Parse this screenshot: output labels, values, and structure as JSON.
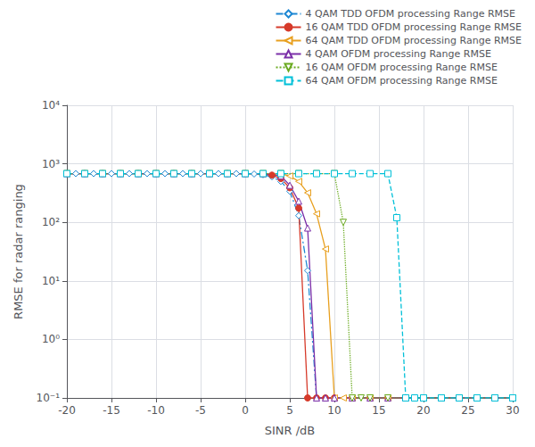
{
  "chart_data": {
    "type": "line",
    "xlabel": "SINR /dB",
    "ylabel": "RMSE for radar ranging",
    "xlim": [
      -20,
      30
    ],
    "ylim": [
      0.1,
      10000
    ],
    "xticks": [
      -20,
      -15,
      -10,
      -5,
      0,
      5,
      10,
      15,
      20,
      25,
      30
    ],
    "yticks": [
      {
        "value": 0.1,
        "label": "10⁻¹"
      },
      {
        "value": 1,
        "label": "10⁰"
      },
      {
        "value": 10,
        "label": "10¹"
      },
      {
        "value": 100,
        "label": "10²"
      },
      {
        "value": 1000,
        "label": "10³"
      },
      {
        "value": 10000,
        "label": "10⁴"
      }
    ],
    "log": "y",
    "grid": true,
    "legend": "upper right",
    "series": [
      {
        "name": "4 QAM TDD OFDM processing Range RMSE",
        "color": "#1e88d4",
        "line_style": "dashdot",
        "marker": "open-diamond",
        "x": [
          -20,
          -19,
          -18,
          -17,
          -16,
          -15,
          -14,
          -13,
          -12,
          -11,
          -10,
          -9,
          -8,
          -7,
          -6,
          -5,
          -4,
          -3,
          -2,
          -1,
          0,
          1,
          2,
          3,
          4,
          5,
          6,
          7,
          8,
          9,
          10,
          12,
          14,
          16,
          18,
          20,
          22,
          24,
          26,
          28,
          30
        ],
        "values": [
          680,
          680,
          680,
          680,
          680,
          680,
          680,
          680,
          680,
          680,
          680,
          680,
          680,
          680,
          680,
          680,
          680,
          680,
          680,
          680,
          680,
          670,
          650,
          600,
          500,
          340,
          130,
          15,
          0.1,
          0.1,
          0.1,
          0.1,
          0.1,
          0.1,
          0.1,
          0.1,
          0.1,
          0.1,
          0.1,
          0.1,
          0.1
        ]
      },
      {
        "name": "16 QAM TDD OFDM processing Range RMSE",
        "color": "#d63a2a",
        "line_style": "solid",
        "marker": "filled-circle",
        "x": [
          -20,
          -18,
          -16,
          -14,
          -12,
          -10,
          -8,
          -6,
          -4,
          -2,
          0,
          2,
          3,
          4,
          5,
          6,
          7,
          8,
          9,
          10,
          12,
          14,
          16,
          18,
          20,
          22,
          24,
          26,
          28,
          30
        ],
        "values": [
          680,
          680,
          680,
          680,
          680,
          680,
          680,
          680,
          680,
          680,
          680,
          670,
          640,
          560,
          390,
          175,
          0.1,
          0.1,
          0.1,
          0.1,
          0.1,
          0.1,
          0.1,
          0.1,
          0.1,
          0.1,
          0.1,
          0.1,
          0.1,
          0.1
        ]
      },
      {
        "name": "64 QAM TDD OFDM processing Range RMSE",
        "color": "#e8a020",
        "line_style": "solid",
        "marker": "open-triangle-left",
        "x": [
          -20,
          -18,
          -16,
          -14,
          -12,
          -10,
          -8,
          -6,
          -4,
          -2,
          0,
          2,
          4,
          5,
          6,
          7,
          8,
          9,
          10,
          11,
          12,
          14,
          16,
          18,
          20,
          22,
          24,
          26,
          28,
          30
        ],
        "values": [
          680,
          680,
          680,
          680,
          680,
          680,
          680,
          680,
          680,
          680,
          680,
          680,
          670,
          620,
          500,
          320,
          140,
          35,
          0.1,
          0.1,
          0.1,
          0.1,
          0.1,
          0.1,
          0.1,
          0.1,
          0.1,
          0.1,
          0.1,
          0.1
        ]
      },
      {
        "name": "4 QAM OFDM processing Range RMSE",
        "color": "#7b2fa8",
        "line_style": "solid",
        "marker": "open-triangle-up",
        "x": [
          -20,
          -18,
          -16,
          -14,
          -12,
          -10,
          -8,
          -6,
          -4,
          -2,
          0,
          2,
          4,
          5,
          6,
          7,
          8,
          9,
          10,
          12,
          14,
          16,
          18,
          20,
          22,
          24,
          26,
          28,
          30
        ],
        "values": [
          680,
          680,
          680,
          680,
          680,
          680,
          680,
          680,
          680,
          680,
          680,
          678,
          620,
          430,
          230,
          80,
          0.1,
          0.1,
          0.1,
          0.1,
          0.1,
          0.1,
          0.1,
          0.1,
          0.1,
          0.1,
          0.1,
          0.1,
          0.1
        ]
      },
      {
        "name": "16 QAM OFDM processing Range RMSE",
        "color": "#6aaa20",
        "line_style": "dotted",
        "marker": "open-triangle-down",
        "x": [
          -20,
          -18,
          -16,
          -14,
          -12,
          -10,
          -8,
          -6,
          -4,
          -2,
          0,
          2,
          4,
          6,
          8,
          10,
          11,
          12,
          13,
          14,
          16,
          18,
          20,
          22,
          24,
          26,
          28,
          30
        ],
        "values": [
          680,
          680,
          680,
          680,
          680,
          680,
          680,
          680,
          680,
          680,
          680,
          680,
          680,
          680,
          680,
          680,
          100,
          0.1,
          0.1,
          0.1,
          0.1,
          0.1,
          0.1,
          0.1,
          0.1,
          0.1,
          0.1,
          0.1
        ]
      },
      {
        "name": "64 QAM OFDM processing Range RMSE",
        "color": "#00c0d8",
        "line_style": "dashed",
        "marker": "open-square",
        "x": [
          -20,
          -18,
          -16,
          -14,
          -12,
          -10,
          -8,
          -6,
          -4,
          -2,
          0,
          2,
          4,
          6,
          8,
          10,
          12,
          14,
          16,
          17,
          18,
          19,
          20,
          22,
          24,
          26,
          28,
          30
        ],
        "values": [
          680,
          680,
          680,
          680,
          680,
          680,
          680,
          680,
          680,
          680,
          680,
          680,
          680,
          680,
          680,
          680,
          680,
          680,
          680,
          120,
          0.1,
          0.1,
          0.1,
          0.1,
          0.1,
          0.1,
          0.1,
          0.1
        ]
      }
    ]
  }
}
